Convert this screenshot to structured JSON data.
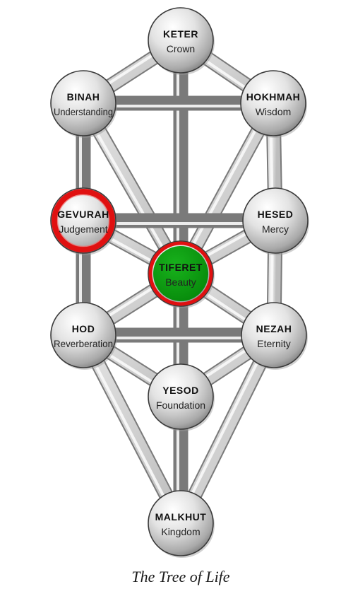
{
  "caption": "The Tree of Life",
  "colors": {
    "highlight_ring": "#e01010",
    "highlight_fill": "#0a9a10",
    "sphere_light": "#ffffff",
    "sphere_dark": "#8a8a8a",
    "outline": "#3a3a3a"
  },
  "nodes": [
    {
      "id": "keter",
      "name": "KETER",
      "meaning": "Crown",
      "highlight": "none"
    },
    {
      "id": "binah",
      "name": "BINAH",
      "meaning": "Understanding",
      "highlight": "none"
    },
    {
      "id": "hokhmah",
      "name": "HOKHMAH",
      "meaning": "Wisdom",
      "highlight": "none"
    },
    {
      "id": "gevurah",
      "name": "GEVURAH",
      "meaning": "Judgement",
      "highlight": "red-ring"
    },
    {
      "id": "hesed",
      "name": "HESED",
      "meaning": "Mercy",
      "highlight": "none"
    },
    {
      "id": "tiferet",
      "name": "TIFERET",
      "meaning": "Beauty",
      "highlight": "green-filled"
    },
    {
      "id": "hod",
      "name": "HOD",
      "meaning": "Reverberation",
      "highlight": "none"
    },
    {
      "id": "nezah",
      "name": "NEZAH",
      "meaning": "Eternity",
      "highlight": "none"
    },
    {
      "id": "yesod",
      "name": "YESOD",
      "meaning": "Foundation",
      "highlight": "none"
    },
    {
      "id": "malkhut",
      "name": "MALKHUT",
      "meaning": "Kingdom",
      "highlight": "none"
    }
  ],
  "paths": [
    [
      "keter",
      "binah"
    ],
    [
      "keter",
      "hokhmah"
    ],
    [
      "keter",
      "tiferet"
    ],
    [
      "binah",
      "hokhmah"
    ],
    [
      "binah",
      "gevurah"
    ],
    [
      "binah",
      "tiferet"
    ],
    [
      "hokhmah",
      "hesed"
    ],
    [
      "hokhmah",
      "tiferet"
    ],
    [
      "gevurah",
      "hesed"
    ],
    [
      "gevurah",
      "tiferet"
    ],
    [
      "gevurah",
      "hod"
    ],
    [
      "hesed",
      "tiferet"
    ],
    [
      "hesed",
      "nezah"
    ],
    [
      "tiferet",
      "hod"
    ],
    [
      "tiferet",
      "nezah"
    ],
    [
      "tiferet",
      "yesod"
    ],
    [
      "hod",
      "nezah"
    ],
    [
      "hod",
      "yesod"
    ],
    [
      "hod",
      "malkhut"
    ],
    [
      "nezah",
      "yesod"
    ],
    [
      "nezah",
      "malkhut"
    ],
    [
      "yesod",
      "malkhut"
    ]
  ]
}
